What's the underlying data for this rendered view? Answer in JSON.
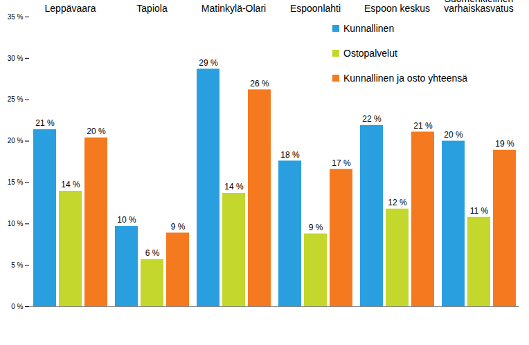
{
  "chart_data": {
    "type": "bar",
    "categories": [
      "Leppävaara",
      "Tapiola",
      "Matinkylä-Olari",
      "Espoonlahti",
      "Espoon keskus",
      "Suomenkielinen varhaiskasvatus"
    ],
    "series": [
      {
        "name": "Kunnallinen",
        "color": "#2a9fe0",
        "values": [
          21.4,
          9.7,
          28.7,
          17.6,
          21.9,
          20.0
        ],
        "value_labels": [
          "21 %",
          "10 %",
          "29 %",
          "18 %",
          "22 %",
          "20 %"
        ]
      },
      {
        "name": "Ostopalvelut",
        "color": "#c4d72c",
        "values": [
          13.95,
          5.7,
          13.7,
          8.8,
          11.8,
          10.8
        ],
        "value_labels": [
          "14 %",
          "6 %",
          "14 %",
          "9 %",
          "12 %",
          "11 %"
        ]
      },
      {
        "name": "Kunnallinen ja osto yhteensä",
        "color": "#f57a1f",
        "values": [
          20.4,
          8.9,
          26.2,
          16.6,
          21.1,
          18.9
        ],
        "value_labels": [
          "20 %",
          "9 %",
          "26 %",
          "17 %",
          "21 %",
          "19 %"
        ]
      }
    ],
    "ylim": [
      0,
      35
    ],
    "yticks": [
      {
        "value": 0,
        "label": "0 %"
      },
      {
        "value": 5,
        "label": "5 %"
      },
      {
        "value": 10,
        "label": "10 %"
      },
      {
        "value": 15,
        "label": "15 %"
      },
      {
        "value": 20,
        "label": "20 %"
      },
      {
        "value": 25,
        "label": "25 %"
      },
      {
        "value": 30,
        "label": "30 %"
      },
      {
        "value": 35,
        "label": "35 %"
      }
    ],
    "grid": false,
    "legend": "top-right",
    "data_labels": true
  }
}
